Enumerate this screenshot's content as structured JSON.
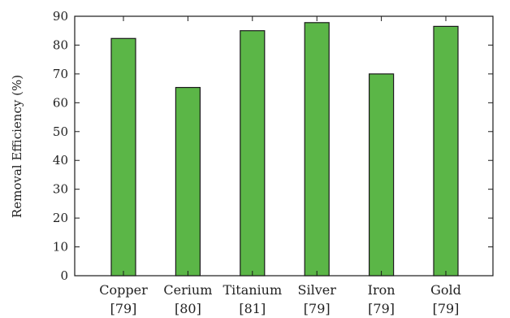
{
  "chart_data": {
    "type": "bar",
    "categories": [
      {
        "name": "Copper",
        "ref": "[79]"
      },
      {
        "name": "Cerium",
        "ref": "[80]"
      },
      {
        "name": "Titanium",
        "ref": "[81]"
      },
      {
        "name": "Silver",
        "ref": "[79]"
      },
      {
        "name": "Iron",
        "ref": "[79]"
      },
      {
        "name": "Gold",
        "ref": "[79]"
      }
    ],
    "values": [
      82.3,
      65.3,
      85.0,
      87.8,
      70.0,
      86.5
    ],
    "title": "",
    "xlabel": "",
    "ylabel": "Removal Efficiency (%)",
    "ylim": [
      0,
      90
    ],
    "yticks": [
      0,
      10,
      20,
      30,
      40,
      50,
      60,
      70,
      80,
      90
    ],
    "grid": false,
    "bar_color": "#5bb647"
  }
}
